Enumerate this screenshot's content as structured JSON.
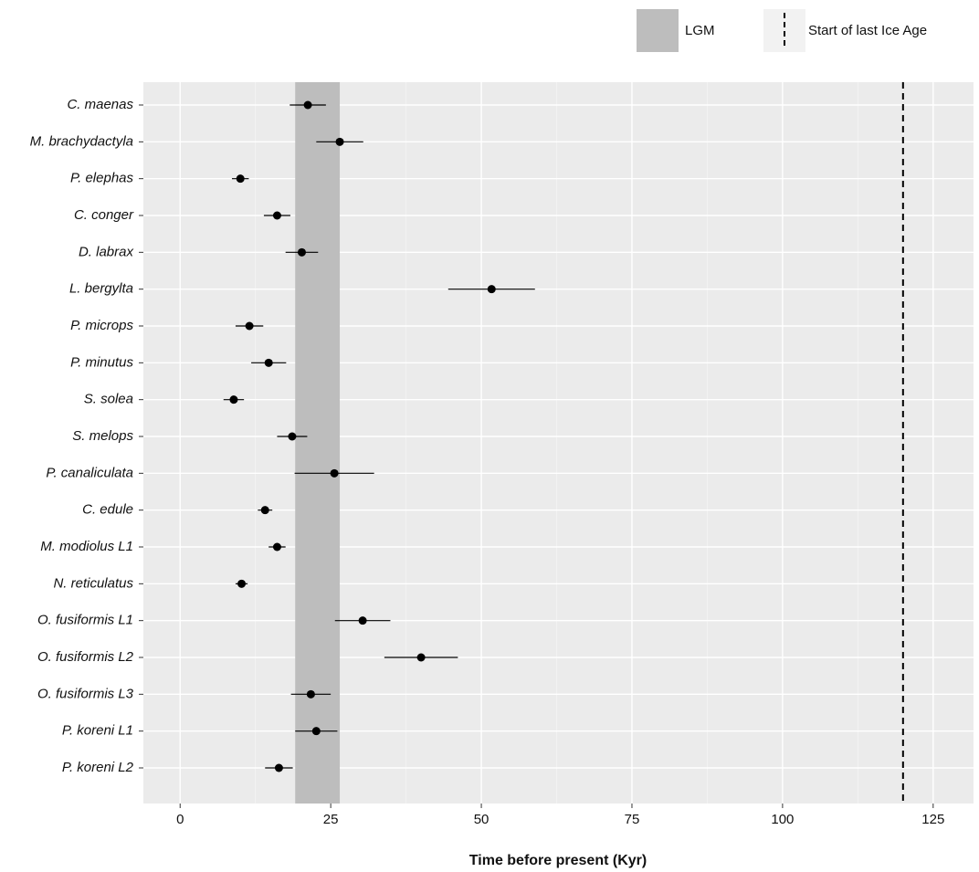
{
  "chart_data": {
    "type": "dot-errorbar",
    "x_label": "Time before present (Kyr)",
    "categories": [
      "C. maenas",
      "M. brachydactyla",
      "P. elephas",
      "C. conger",
      "D. labrax",
      "L. bergylta",
      "P. microps",
      "P. minutus",
      "S. solea",
      "S. melops",
      "P. canaliculata",
      "C. edule",
      "M. modiolus L1",
      "N. reticulatus",
      "O. fusiformis L1",
      "O. fusiformis L2",
      "O. fusiformis L3",
      "P. koreni L1",
      "P. koreni L2"
    ],
    "values": [
      21.2,
      26.5,
      10,
      16.1,
      20.2,
      51.7,
      11.5,
      14.7,
      8.9,
      18.6,
      25.6,
      14.1,
      16.1,
      10.2,
      30.3,
      40,
      21.7,
      22.6,
      16.4
    ],
    "errors": [
      3,
      3.9,
      1.4,
      2.2,
      2.7,
      7.2,
      2.3,
      2.9,
      1.7,
      2.5,
      6.6,
      1.2,
      1.4,
      1,
      4.6,
      6.1,
      3.3,
      3.5,
      2.3
    ],
    "color": "#000000",
    "xlim": [
      -6.1,
      131.7
    ],
    "xticks": [
      0,
      25,
      50,
      75,
      100,
      125
    ],
    "grid": true,
    "band": {
      "name": "LGM",
      "range": [
        19.1,
        26.5
      ],
      "color": "#bdbdbd"
    },
    "vline": {
      "name": "Start of last Ice Age",
      "value": 120,
      "color": "#000000"
    },
    "legend": "top-right"
  }
}
